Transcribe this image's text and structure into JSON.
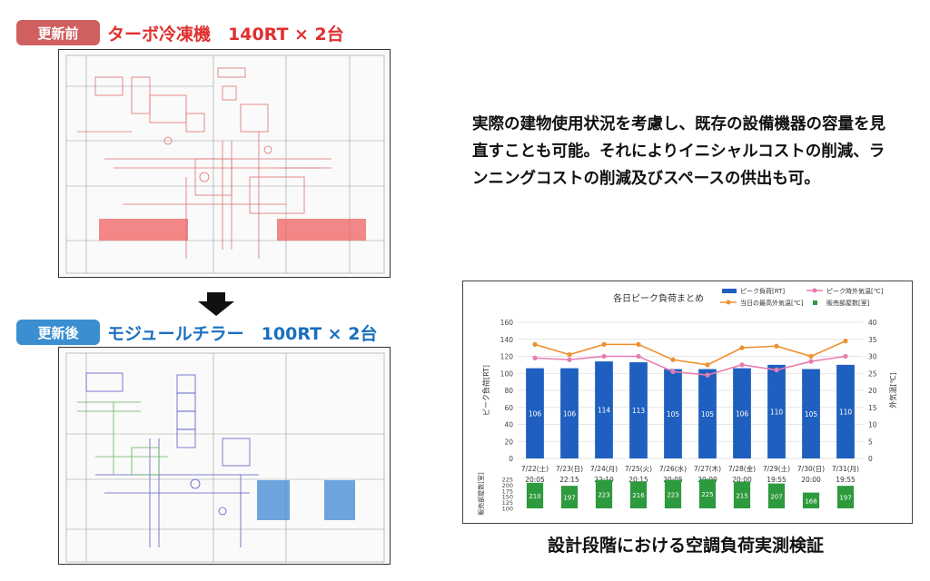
{
  "before": {
    "badge": "更新前",
    "badge_color": "#d06060",
    "title": "ターボ冷凍機　140RT × 2台",
    "title_color": "#e03030"
  },
  "after": {
    "badge": "更新後",
    "badge_color": "#3b8fd0",
    "title": "モジュールチラー　100RT × 2台",
    "title_color": "#1a6fc0"
  },
  "description": "実際の建物使用状況を考慮し、既存の設備機器の容量を見直すことも可能。それによりイニシャルコストの削減、ランニングコストの削減及びスペースの供出も可。",
  "caption": "設計段階における空調負荷実測検証",
  "chart_data": {
    "type": "bar",
    "title": "各日ピーク負荷まとめ",
    "categories": [
      "7/22(土)",
      "7/23(日)",
      "7/24(月)",
      "7/25(火)",
      "7/26(水)",
      "7/27(木)",
      "7/28(金)",
      "7/29(土)",
      "7/30(日)",
      "7/31(月)"
    ],
    "times": [
      "20:05",
      "22:15",
      "22:10",
      "20:15",
      "20:05",
      "20:00",
      "20:00",
      "19:55",
      "20:00",
      "19:55"
    ],
    "ylabel": "ピーク負荷[RT]",
    "y2label": "外気温[℃]",
    "ylim": [
      0,
      160
    ],
    "y2lim": [
      0,
      40
    ],
    "yticks": [
      0,
      20,
      40,
      60,
      80,
      100,
      120,
      140,
      160
    ],
    "y2ticks": [
      0,
      5,
      10,
      15,
      20,
      25,
      30,
      35,
      40
    ],
    "series": [
      {
        "name": "ピーク負荷[RT]",
        "type": "bar",
        "color": "#1f5fbf",
        "values": [
          106,
          106,
          114,
          113,
          105,
          105,
          106,
          110,
          105,
          110
        ]
      },
      {
        "name": "ピーク時外気温[℃]",
        "type": "line",
        "axis": "y2",
        "color": "#e87db0",
        "values": [
          29.5,
          29,
          30,
          30,
          25.5,
          24.5,
          27.5,
          26,
          28.5,
          30
        ]
      },
      {
        "name": "当日の最高外気温[℃]",
        "type": "line",
        "axis": "y2",
        "color": "#f09030",
        "values": [
          33.5,
          30.5,
          33.5,
          33.5,
          29,
          27.5,
          32.5,
          33,
          30,
          34.5
        ]
      }
    ],
    "sub_chart": {
      "ylabel": "販売部屋数[室]",
      "legend": "販売部屋数[室]",
      "color": "#2e9a3e",
      "ylim": [
        100,
        225
      ],
      "yticks": [
        100,
        125,
        150,
        175,
        200,
        225
      ],
      "values": [
        210,
        197,
        223,
        216,
        223,
        225,
        215,
        207,
        168,
        197
      ]
    },
    "legend_position": "top-right",
    "grid": true
  }
}
